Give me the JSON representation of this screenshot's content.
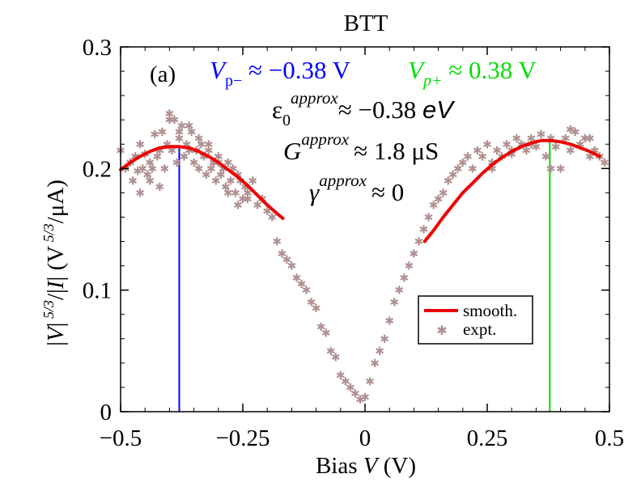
{
  "chart_data": {
    "type": "scatter",
    "title": "BTT",
    "xlabel": {
      "prefix": "Bias ",
      "var": "V",
      "unit": " (V)"
    },
    "ylabel": {
      "text": "|V|^(5/3)/|I| (V^(5/3)/μA)"
    },
    "xlim": [
      -0.5,
      0.5
    ],
    "ylim": [
      0,
      0.3
    ],
    "xticks": [
      -0.5,
      -0.25,
      0,
      0.25,
      0.5
    ],
    "xtick_labels": [
      "−0.5",
      "−0.25",
      "0",
      "0.25",
      "0.5"
    ],
    "yticks": [
      0,
      0.1,
      0.2,
      0.3
    ],
    "ytick_labels": [
      "0",
      "0.1",
      "0.2",
      "0.3"
    ],
    "panel_label": "(a)",
    "annotations": {
      "vp_minus": {
        "var": "V",
        "sub": "p−",
        "text": " ≈ −0.38 V",
        "color": "#0000ff"
      },
      "vp_plus": {
        "var": "V",
        "sub": "p+",
        "text": " ≈ 0.38 V",
        "color": "#00dd00"
      },
      "eps": {
        "sym": "ε",
        "sub": "0",
        "sup": "approx",
        "text": "≈ −0.38 ",
        "unit": "eV"
      },
      "g": {
        "sym": "G",
        "sup": "approx",
        "text": "≈ 1.8 μS"
      },
      "gamma": {
        "sym": "γ",
        "sup": "approx",
        "text": "≈ 0"
      }
    },
    "vlines": [
      {
        "x": -0.38,
        "y_top": 0.218,
        "color": "#0000ff"
      },
      {
        "x": 0.378,
        "y_top": 0.223,
        "color": "#00dd00"
      }
    ],
    "legend": {
      "position": "lower-right",
      "entries": [
        {
          "label": "smooth.",
          "kind": "line",
          "color": "#ee0000"
        },
        {
          "label": "expt.",
          "kind": "marker",
          "color": "#b09090"
        }
      ]
    },
    "series": [
      {
        "name": "smooth.",
        "color": "#ee0000",
        "x": [
          -0.5,
          -0.48,
          -0.46,
          -0.44,
          -0.42,
          -0.4,
          -0.38,
          -0.36,
          -0.34,
          -0.32,
          -0.3,
          -0.28,
          -0.26,
          -0.24,
          -0.22,
          -0.2,
          -0.18,
          -0.168
        ],
        "y": [
          0.199,
          0.205,
          0.21,
          0.214,
          0.217,
          0.218,
          0.218,
          0.217,
          0.214,
          0.21,
          0.205,
          0.199,
          0.193,
          0.186,
          0.178,
          0.17,
          0.163,
          0.159
        ]
      },
      {
        "name": "smooth.",
        "color": "#ee0000",
        "x": [
          0.122,
          0.14,
          0.16,
          0.18,
          0.2,
          0.22,
          0.24,
          0.26,
          0.28,
          0.3,
          0.32,
          0.34,
          0.36,
          0.38,
          0.4,
          0.42,
          0.44,
          0.46,
          0.48
        ],
        "y": [
          0.14,
          0.149,
          0.16,
          0.17,
          0.18,
          0.188,
          0.196,
          0.203,
          0.209,
          0.214,
          0.218,
          0.221,
          0.223,
          0.223,
          0.222,
          0.22,
          0.217,
          0.214,
          0.21
        ]
      },
      {
        "name": "expt.",
        "color": "#b09090",
        "x": [
          -0.5,
          -0.49,
          -0.48,
          -0.475,
          -0.47,
          -0.465,
          -0.46,
          -0.455,
          -0.45,
          -0.445,
          -0.44,
          -0.435,
          -0.43,
          -0.425,
          -0.42,
          -0.415,
          -0.41,
          -0.405,
          -0.4,
          -0.395,
          -0.39,
          -0.385,
          -0.38,
          -0.375,
          -0.37,
          -0.365,
          -0.36,
          -0.355,
          -0.35,
          -0.345,
          -0.34,
          -0.335,
          -0.33,
          -0.325,
          -0.32,
          -0.315,
          -0.31,
          -0.305,
          -0.3,
          -0.295,
          -0.29,
          -0.285,
          -0.28,
          -0.275,
          -0.27,
          -0.265,
          -0.26,
          -0.255,
          -0.25,
          -0.245,
          -0.24,
          -0.23,
          -0.22,
          -0.21,
          -0.2,
          -0.19,
          -0.18,
          -0.17,
          -0.16,
          -0.15,
          -0.14,
          -0.13,
          -0.12,
          -0.11,
          -0.1,
          -0.09,
          -0.08,
          -0.07,
          -0.06,
          -0.05,
          -0.04,
          -0.03,
          -0.02,
          -0.01,
          0.0,
          0.01,
          0.02,
          0.03,
          0.04,
          0.05,
          0.06,
          0.07,
          0.08,
          0.09,
          0.1,
          0.11,
          0.12,
          0.13,
          0.14,
          0.15,
          0.16,
          0.17,
          0.18,
          0.19,
          0.2,
          0.21,
          0.22,
          0.23,
          0.24,
          0.25,
          0.26,
          0.27,
          0.28,
          0.29,
          0.3,
          0.31,
          0.32,
          0.33,
          0.34,
          0.35,
          0.36,
          0.37,
          0.38,
          0.39,
          0.4,
          0.41,
          0.42,
          0.43,
          0.44,
          0.45,
          0.46,
          0.47,
          0.48,
          0.49,
          -0.46,
          -0.44,
          -0.42,
          -0.4,
          -0.38,
          -0.36,
          -0.34,
          -0.32,
          -0.3,
          -0.28,
          -0.26,
          -0.24,
          0.26,
          0.3,
          0.34,
          0.38,
          0.42,
          0.46
        ],
        "y": [
          0.215,
          0.2,
          0.205,
          0.19,
          0.21,
          0.198,
          0.22,
          0.2,
          0.212,
          0.195,
          0.205,
          0.2,
          0.228,
          0.21,
          0.215,
          0.23,
          0.2,
          0.22,
          0.245,
          0.215,
          0.24,
          0.205,
          0.225,
          0.235,
          0.21,
          0.22,
          0.215,
          0.23,
          0.205,
          0.215,
          0.2,
          0.22,
          0.21,
          0.195,
          0.215,
          0.2,
          0.205,
          0.19,
          0.21,
          0.195,
          0.2,
          0.185,
          0.205,
          0.19,
          0.2,
          0.18,
          0.195,
          0.19,
          0.175,
          0.185,
          0.18,
          0.19,
          0.17,
          0.175,
          0.165,
          0.16,
          0.14,
          0.13,
          0.125,
          0.12,
          0.11,
          0.105,
          0.1,
          0.09,
          0.085,
          0.07,
          0.065,
          0.05,
          0.045,
          0.03,
          0.025,
          0.02,
          0.015,
          0.01,
          0.012,
          0.025,
          0.04,
          0.05,
          0.06,
          0.075,
          0.09,
          0.1,
          0.11,
          0.12,
          0.13,
          0.14,
          0.15,
          0.16,
          0.17,
          0.175,
          0.18,
          0.19,
          0.195,
          0.2,
          0.205,
          0.21,
          0.2,
          0.215,
          0.21,
          0.22,
          0.205,
          0.215,
          0.21,
          0.22,
          0.215,
          0.225,
          0.22,
          0.215,
          0.225,
          0.218,
          0.228,
          0.21,
          0.225,
          0.218,
          0.2,
          0.225,
          0.215,
          0.23,
          0.22,
          0.225,
          0.21,
          0.215,
          0.21,
          0.205,
          0.18,
          0.19,
          0.185,
          0.24,
          0.23,
          0.235,
          0.225,
          0.22,
          0.205,
          0.18,
          0.17,
          0.175,
          0.2,
          0.212,
          0.22,
          0.2,
          0.232,
          0.225
        ]
      }
    ]
  }
}
